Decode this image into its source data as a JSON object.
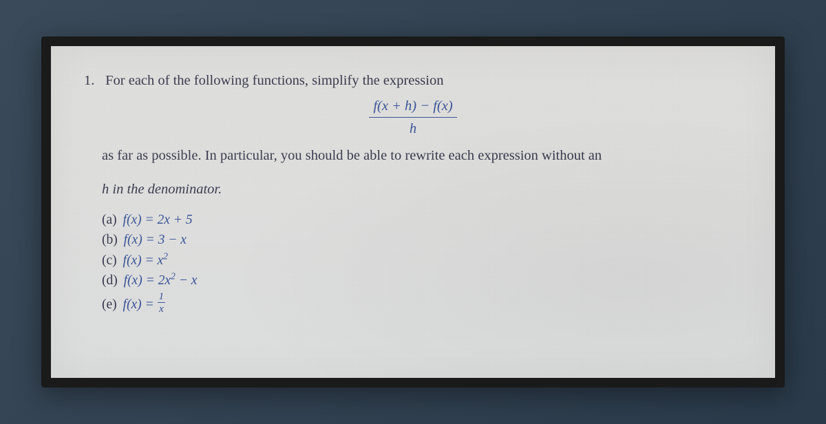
{
  "colors": {
    "paper_bg": "#dfe0df",
    "frame_border": "#1a1a1a",
    "body_text": "#2e2e44",
    "math_text": "#2f4a94",
    "outer_bg_start": "#3a4a5a",
    "outer_bg_end": "#2a3a4a"
  },
  "typography": {
    "font_family": "Georgia / Times-like serif",
    "body_fontsize_pt": 15,
    "math_fontsize_pt": 15,
    "choice_fontsize_pt": 14.5
  },
  "problem": {
    "number": "1.",
    "stem_line1": "For each of the following functions, simplify the expression",
    "difference_quotient": {
      "numerator": "f(x + h) − f(x)",
      "denominator": "h"
    },
    "stem_line2": "as far as possible. In particular, you should be able to rewrite each expression without an",
    "stem_line3_prefix_italic": "h",
    "stem_line3_rest": " in the denominator.",
    "choices": [
      {
        "label": "(a)",
        "expr_html": "f(x) = 2x + 5"
      },
      {
        "label": "(b)",
        "expr_html": "f(x) = 3 − x"
      },
      {
        "label": "(c)",
        "expr_html": "f(x) = x²"
      },
      {
        "label": "(d)",
        "expr_html": "f(x) = 2x² − x"
      },
      {
        "label": "(e)",
        "expr_html": "f(x) = 1⁄x"
      }
    ]
  }
}
